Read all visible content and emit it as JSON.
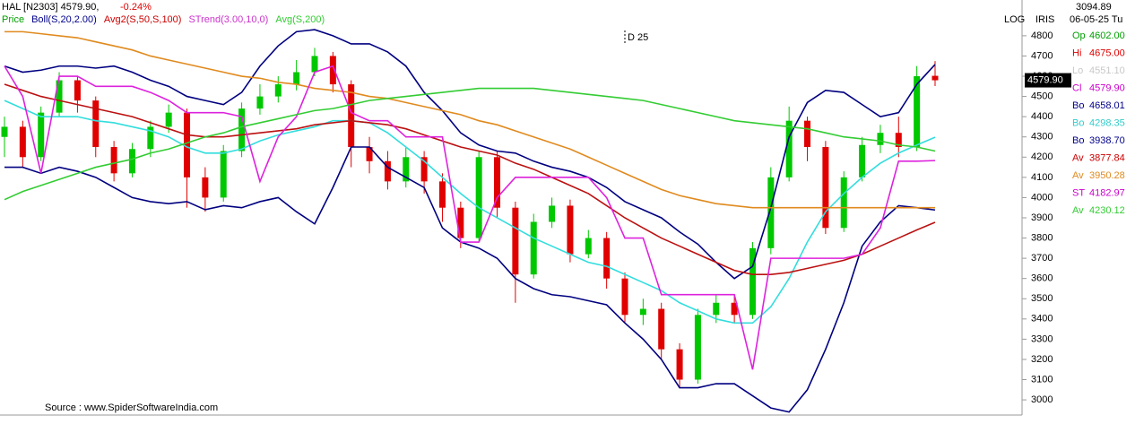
{
  "header": {
    "symbol": "HAL [N2303] 4579.90,",
    "change": "-0.24%"
  },
  "legend": [
    {
      "text": "Price",
      "color": "#00a000"
    },
    {
      "text": "Boll(S,20,2.00)",
      "color": "#00008b"
    },
    {
      "text": "Avg2(S,50,S,100)",
      "color": "#cc0000"
    },
    {
      "text": "STrend(3.00,10,0)",
      "color": "#cc33cc"
    },
    {
      "text": "Avg(S,200)",
      "color": "#33cc33"
    }
  ],
  "scale_mode": "LOG",
  "panel_title": "IRIS",
  "cursor_value": "3094.89",
  "cursor_date": "06-05-25 Tu",
  "readout": [
    {
      "label": "Op",
      "value": "4602.00",
      "color": "#00a000"
    },
    {
      "label": "Hi",
      "value": "4675.00",
      "color": "#e00000"
    },
    {
      "label": "Lo",
      "value": "4551.10",
      "color": "#c8c8c8"
    },
    {
      "label": "Cl",
      "value": "4579.90",
      "color": "#cc00cc"
    },
    {
      "label": "Bo",
      "value": "4658.01",
      "color": "#00008b"
    },
    {
      "label": "Bo",
      "value": "4298.35",
      "color": "#33cccc"
    },
    {
      "label": "Bo",
      "value": "3938.70",
      "color": "#00008b"
    },
    {
      "label": "Av",
      "value": "3877.84",
      "color": "#cc0000"
    },
    {
      "label": "Av",
      "value": "3950.28",
      "color": "#e08a1e"
    },
    {
      "label": "ST",
      "value": "4182.97",
      "color": "#cc00cc"
    },
    {
      "label": "Av",
      "value": "4230.12",
      "color": "#33cc33"
    }
  ],
  "last_price_label": "4579.90",
  "source": "Source : www.SpiderSoftwareIndia.com",
  "chart_data": {
    "type": "candlestick",
    "annotation": "D 25",
    "ylim": [
      2925,
      4866
    ],
    "yticks": [
      3000,
      3100,
      3200,
      3300,
      3400,
      3500,
      3600,
      3700,
      3800,
      3900,
      4000,
      4100,
      4200,
      4300,
      4400,
      4500,
      4600,
      4700,
      4800
    ],
    "up_color": "#00c800",
    "down_color": "#e00000",
    "open": [
      4300,
      4350,
      4200,
      4420,
      4580,
      4480,
      4250,
      4120,
      4240,
      4350,
      4420,
      4100,
      4000,
      4230,
      4440,
      4500,
      4560,
      4620,
      4700,
      4560,
      4250,
      4180,
      4080,
      4200,
      4080,
      3950,
      3800,
      4200,
      3950,
      3620,
      3880,
      3960,
      3720,
      3800,
      3600,
      3420,
      3450,
      3250,
      3100,
      3420,
      3480,
      3420,
      3750,
      4100,
      4380,
      4250,
      3850,
      4100,
      4260,
      4320,
      4250,
      4602
    ],
    "high": [
      4400,
      4380,
      4450,
      4620,
      4600,
      4500,
      4280,
      4270,
      4380,
      4460,
      4440,
      4150,
      4260,
      4470,
      4560,
      4600,
      4680,
      4740,
      4720,
      4580,
      4300,
      4230,
      4250,
      4230,
      4120,
      3980,
      4230,
      4230,
      3980,
      3920,
      4000,
      3990,
      3840,
      3830,
      3630,
      3500,
      3480,
      3280,
      3450,
      3520,
      3520,
      3780,
      4150,
      4450,
      4400,
      4280,
      4130,
      4300,
      4360,
      4400,
      4650,
      4675
    ],
    "low": [
      4200,
      4150,
      4180,
      4400,
      4420,
      4200,
      4080,
      4100,
      4200,
      4320,
      3950,
      3930,
      3980,
      4200,
      4410,
      4470,
      4530,
      4600,
      4520,
      4150,
      4120,
      4040,
      4050,
      4020,
      3880,
      3750,
      3780,
      3900,
      3480,
      3600,
      3850,
      3680,
      3700,
      3550,
      3380,
      3370,
      3200,
      3060,
      3080,
      3380,
      3380,
      3400,
      3720,
      4080,
      4180,
      3820,
      3830,
      4080,
      4220,
      4200,
      4230,
      4551.1
    ],
    "close": [
      4350,
      4200,
      4420,
      4580,
      4480,
      4250,
      4120,
      4240,
      4350,
      4420,
      4100,
      4000,
      4230,
      4440,
      4500,
      4560,
      4620,
      4700,
      4560,
      4250,
      4180,
      4080,
      4200,
      4080,
      3950,
      3800,
      4200,
      3950,
      3620,
      3880,
      3960,
      3720,
      3800,
      3600,
      3420,
      3450,
      3250,
      3100,
      3420,
      3480,
      3420,
      3750,
      4100,
      4380,
      4250,
      3850,
      4100,
      4260,
      4320,
      4250,
      4600,
      4579.9
    ],
    "lines": [
      {
        "color": "#000080",
        "values": [
          4650,
          4620,
          4630,
          4650,
          4650,
          4640,
          4650,
          4620,
          4580,
          4550,
          4500,
          4480,
          4460,
          4520,
          4650,
          4750,
          4820,
          4830,
          4800,
          4760,
          4760,
          4720,
          4650,
          4520,
          4430,
          4320,
          4260,
          4230,
          4220,
          4180,
          4150,
          4130,
          4100,
          4050,
          3980,
          3940,
          3900,
          3830,
          3770,
          3680,
          3600,
          3660,
          3950,
          4300,
          4470,
          4530,
          4520,
          4460,
          4400,
          4420,
          4560,
          4658.01
        ]
      },
      {
        "color": "#33dddd",
        "values": [
          4480,
          4440,
          4400,
          4400,
          4400,
          4380,
          4370,
          4350,
          4330,
          4300,
          4250,
          4220,
          4220,
          4240,
          4280,
          4310,
          4330,
          4350,
          4380,
          4380,
          4370,
          4320,
          4250,
          4180,
          4100,
          4020,
          3950,
          3900,
          3850,
          3800,
          3760,
          3720,
          3680,
          3660,
          3620,
          3580,
          3540,
          3480,
          3440,
          3400,
          3380,
          3380,
          3460,
          3600,
          3780,
          3930,
          4020,
          4100,
          4170,
          4220,
          4260,
          4298.35
        ]
      },
      {
        "color": "#000080",
        "values": [
          4150,
          4150,
          4120,
          4150,
          4130,
          4100,
          4050,
          4000,
          3980,
          3970,
          3980,
          3940,
          3960,
          3950,
          3980,
          4000,
          3930,
          3870,
          4050,
          4250,
          4250,
          4150,
          4100,
          4050,
          3850,
          3780,
          3750,
          3700,
          3600,
          3550,
          3520,
          3510,
          3490,
          3470,
          3380,
          3300,
          3200,
          3060,
          3060,
          3080,
          3080,
          3020,
          2960,
          2940,
          3050,
          3250,
          3480,
          3760,
          3880,
          3960,
          3950,
          3938.7
        ]
      },
      {
        "color": "#bb1111",
        "values": [
          4560,
          4530,
          4500,
          4480,
          4460,
          4440,
          4420,
          4400,
          4370,
          4340,
          4310,
          4300,
          4300,
          4310,
          4320,
          4330,
          4340,
          4360,
          4370,
          4380,
          4370,
          4360,
          4340,
          4310,
          4280,
          4250,
          4230,
          4210,
          4170,
          4140,
          4100,
          4060,
          4020,
          3960,
          3900,
          3850,
          3800,
          3760,
          3720,
          3680,
          3640,
          3620,
          3620,
          3630,
          3650,
          3670,
          3690,
          3720,
          3760,
          3800,
          3840,
          3877.84
        ]
      },
      {
        "color": "#e08a1e",
        "values": [
          4820,
          4820,
          4810,
          4800,
          4790,
          4770,
          4750,
          4730,
          4700,
          4680,
          4660,
          4640,
          4620,
          4600,
          4590,
          4570,
          4560,
          4540,
          4530,
          4520,
          4500,
          4490,
          4470,
          4450,
          4430,
          4410,
          4380,
          4360,
          4330,
          4300,
          4270,
          4240,
          4200,
          4160,
          4120,
          4080,
          4040,
          4010,
          3990,
          3970,
          3960,
          3950,
          3950,
          3950,
          3950,
          3950,
          3950,
          3950,
          3950,
          3950,
          3950,
          3950.28
        ]
      },
      {
        "color": "#dd22dd",
        "values": [
          4650,
          4500,
          4120,
          4600,
          4600,
          4550,
          4550,
          4550,
          4520,
          4480,
          4420,
          4420,
          4420,
          4400,
          4080,
          4300,
          4400,
          4620,
          4650,
          4420,
          4380,
          4380,
          4300,
          4300,
          4300,
          3780,
          3780,
          4000,
          4100,
          4100,
          4100,
          4100,
          4100,
          4000,
          3800,
          3800,
          3520,
          3520,
          3520,
          3520,
          3520,
          3150,
          3700,
          3700,
          3700,
          3700,
          3700,
          3720,
          3850,
          4180,
          4180,
          4182.97
        ]
      },
      {
        "color": "#33cc33",
        "values": [
          3990,
          4030,
          4060,
          4090,
          4120,
          4150,
          4170,
          4190,
          4220,
          4240,
          4270,
          4300,
          4320,
          4350,
          4370,
          4390,
          4410,
          4430,
          4440,
          4460,
          4480,
          4490,
          4500,
          4510,
          4520,
          4530,
          4540,
          4540,
          4540,
          4540,
          4530,
          4520,
          4510,
          4500,
          4490,
          4480,
          4460,
          4440,
          4420,
          4400,
          4380,
          4370,
          4360,
          4350,
          4340,
          4320,
          4300,
          4290,
          4280,
          4260,
          4250,
          4230.12
        ]
      }
    ]
  }
}
